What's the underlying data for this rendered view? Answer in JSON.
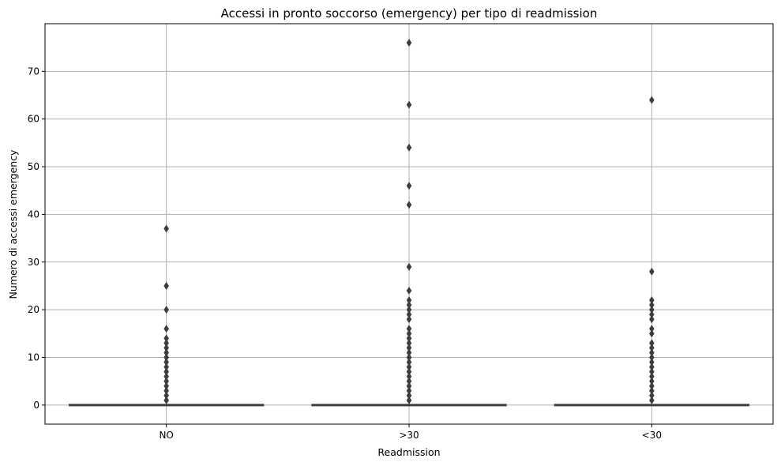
{
  "chart_data": {
    "type": "box",
    "title": "Accessi in pronto soccorso (emergency) per tipo di readmission",
    "xlabel": "Readmission",
    "ylabel": "Numero di accessi emergency",
    "categories": [
      "NO",
      ">30",
      "<30"
    ],
    "ylim": [
      -4,
      80
    ],
    "yticks": [
      0,
      10,
      20,
      30,
      40,
      50,
      60,
      70
    ],
    "grid": true,
    "series": [
      {
        "category": "NO",
        "q1": 0,
        "median": 0,
        "q3": 0,
        "whisker_low": 0,
        "whisker_high": 0,
        "outliers": [
          1,
          2,
          3,
          4,
          5,
          6,
          7,
          8,
          9,
          10,
          11,
          12,
          13,
          14,
          16,
          20,
          25,
          37
        ]
      },
      {
        "category": ">30",
        "q1": 0,
        "median": 0,
        "q3": 0,
        "whisker_low": 0,
        "whisker_high": 0,
        "outliers": [
          1,
          2,
          3,
          4,
          5,
          6,
          7,
          8,
          9,
          10,
          11,
          12,
          13,
          14,
          15,
          16,
          18,
          19,
          20,
          21,
          22,
          24,
          29,
          42,
          46,
          54,
          63,
          76
        ]
      },
      {
        "category": "<30",
        "q1": 0,
        "median": 0,
        "q3": 0,
        "whisker_low": 0,
        "whisker_high": 0,
        "outliers": [
          1,
          2,
          3,
          4,
          5,
          6,
          7,
          8,
          9,
          10,
          11,
          12,
          13,
          15,
          16,
          18,
          19,
          20,
          21,
          22,
          28,
          64
        ]
      }
    ],
    "colors": {
      "box": "#3d3d3d",
      "outlier": "#3d3d3d",
      "grid": "#b0b0b0",
      "axis": "#000000"
    }
  }
}
